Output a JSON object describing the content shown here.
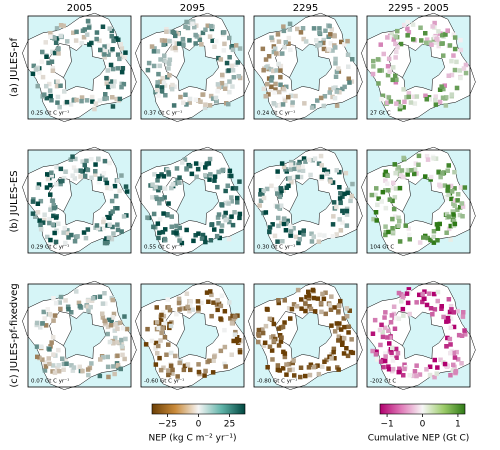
{
  "columns": [
    "2005",
    "2095",
    "2295",
    "2295 - 2005"
  ],
  "rows": [
    {
      "label": "(a) JULES-pf",
      "annotations": [
        "0.25 Gt C yr⁻¹",
        "0.37 Gt C yr⁻¹",
        "0.24 Gt C yr⁻¹",
        "27 Gt C"
      ]
    },
    {
      "label": "(b) JULES-ES",
      "annotations": [
        "0.29 Gt C yr⁻¹",
        "0.55 Gt C yr⁻¹",
        "0.30 Gt C yr⁻¹",
        "104 Gt C"
      ]
    },
    {
      "label": "(c) JULES-pf-fixedveg",
      "annotations": [
        "0.07 Gt C yr⁻¹",
        "-0.60 Gt C yr⁻¹",
        "-0.80 Gt C yr⁻¹",
        "-202 Gt C"
      ]
    }
  ],
  "colorbars": [
    {
      "label": "NEP (kg C m⁻² yr⁻¹)",
      "lim": [
        -37.5,
        37.5
      ],
      "ticks": [
        {
          "value": -25,
          "label": "−25"
        },
        0,
        25
      ]
    },
    {
      "label": "Cumulative NEP (Gt C)",
      "lim": [
        -1.2,
        1.2
      ],
      "ticks": [
        {
          "value": -1,
          "label": "−1"
        },
        0,
        1
      ]
    }
  ]
}
